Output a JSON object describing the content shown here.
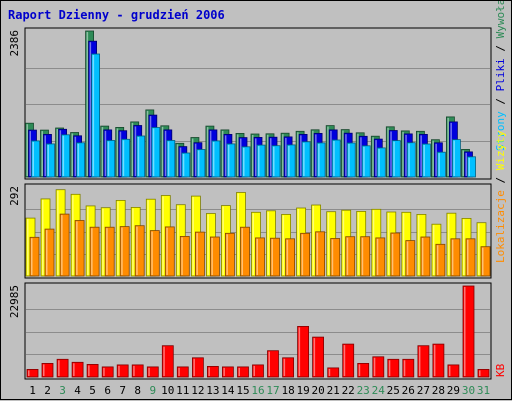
{
  "chart_data": {
    "type": "bar",
    "title": "Raport Dzienny -  grudzień 2006",
    "categories": [
      "1",
      "2",
      "3",
      "4",
      "5",
      "6",
      "7",
      "8",
      "9",
      "10",
      "11",
      "12",
      "13",
      "14",
      "15",
      "16",
      "17",
      "18",
      "19",
      "20",
      "21",
      "22",
      "23",
      "24",
      "25",
      "26",
      "27",
      "28",
      "29",
      "30",
      "31"
    ],
    "weekend_days": [
      "3",
      "9",
      "16",
      "17",
      "23",
      "24",
      "30",
      "31"
    ],
    "colors": {
      "background": "#c0c0c0",
      "plot_bg": "#c0c0c0",
      "title": "#0000cc",
      "weekday_tick": "#000000",
      "weekend_tick": "#2e8b57"
    },
    "panels": [
      {
        "name": "traffic",
        "ymax_label": "2386",
        "ylim": [
          0,
          2386
        ],
        "series": [
          {
            "name": "Wywołania",
            "color": "#2e8b57",
            "values": [
              880,
              766,
              800,
              728,
              2386,
              832,
              811,
              900,
              1096,
              837,
              550,
              646,
              832,
              769,
              712,
              703,
              706,
              715,
              747,
              771,
              840,
              774,
              723,
              667,
              821,
              754,
              747,
              609,
              982,
              451,
              0
            ]
          },
          {
            "name": "Pliki",
            "color": "#0000dd",
            "values": [
              766,
              697,
              780,
              674,
              2220,
              770,
              757,
              842,
              1011,
              770,
              496,
              560,
              770,
              696,
              644,
              647,
              651,
              656,
              696,
              712,
              770,
              715,
              665,
              619,
              760,
              704,
              697,
              559,
              900,
              410,
              0
            ]
          },
          {
            "name": "Strony",
            "color": "#00bfff",
            "values": [
              590,
              541,
              690,
              559,
              2010,
              596,
              616,
              670,
              809,
              596,
              393,
              449,
              590,
              541,
              493,
              521,
              512,
              525,
              576,
              557,
              605,
              556,
              510,
              475,
              595,
              561,
              540,
              405,
              611,
              330,
              0
            ]
          }
        ],
        "legend_labels": [
          "Wywołania",
          "Pliki",
          "Strony"
        ]
      },
      {
        "name": "visits",
        "ymax_label": "292",
        "ylim": [
          0,
          292
        ],
        "series": [
          {
            "name": "Wizyty",
            "color": "#ffff00",
            "values": [
              190,
              253,
              283,
              268,
              230,
              224,
              248,
              225,
              252,
              264,
              234,
              262,
              205,
              231,
              274,
              209,
              214,
              202,
              223,
              233,
              211,
              216,
              212,
              219,
              210,
              209,
              202,
              170,
              206,
              189,
              175
            ]
          },
          {
            "name": "Lokalizacje",
            "color": "#ff8c00",
            "values": [
              127,
              154,
              203,
              182,
              160,
              160,
              162,
              165,
              149,
              161,
              130,
              144,
              128,
              140,
              160,
              125,
              124,
              122,
              140,
              145,
              123,
              129,
              129,
              125,
              141,
              116,
              128,
              104,
              122,
              122,
              96
            ]
          }
        ],
        "legend_labels": [
          "Lokalizacje",
          "Wizyty"
        ]
      },
      {
        "name": "kbytes",
        "ymax_label": "22985",
        "ylim": [
          0,
          22985
        ],
        "series": [
          {
            "name": "KB",
            "color": "#ff0000",
            "values": [
              1915,
              3447,
              4468,
              3702,
              3192,
              2553,
              3064,
              3064,
              2553,
              7916,
              2553,
              4851,
              2681,
              2553,
              2553,
              3064,
              6639,
              4851,
              12769,
              10088,
              2298,
              8299,
              3447,
              5107,
              4468,
              4468,
              7916,
              8299,
              3064,
              22985,
              1915
            ]
          }
        ],
        "legend_labels": [
          "KB"
        ]
      }
    ],
    "legend_separator": "/"
  }
}
